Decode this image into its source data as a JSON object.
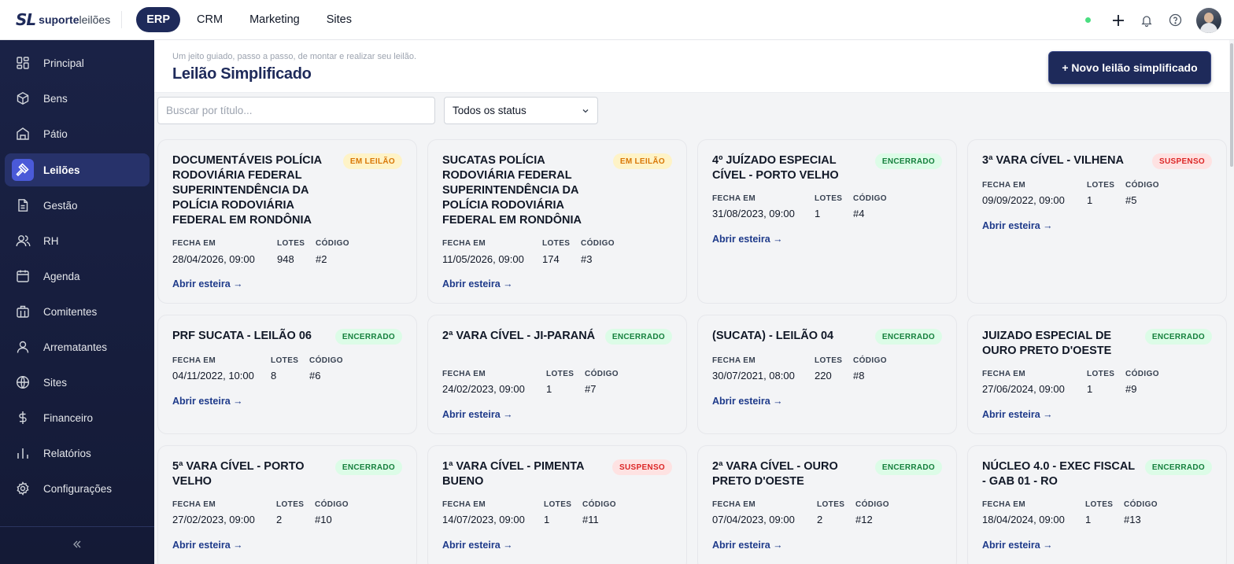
{
  "app": {
    "logo_mark": "SL",
    "logo_brand_bold": "suporte",
    "logo_brand_light": "leilões"
  },
  "topnav": {
    "items": [
      "ERP",
      "CRM",
      "Marketing",
      "Sites"
    ],
    "active": "ERP"
  },
  "sidebar": {
    "items": [
      {
        "label": "Principal",
        "icon": "grid-icon"
      },
      {
        "label": "Bens",
        "icon": "box-icon"
      },
      {
        "label": "Pátio",
        "icon": "building-icon"
      },
      {
        "label": "Leilões",
        "icon": "gavel-icon",
        "active": true
      },
      {
        "label": "Gestão",
        "icon": "document-icon"
      },
      {
        "label": "RH",
        "icon": "users-icon"
      },
      {
        "label": "Agenda",
        "icon": "calendar-icon"
      },
      {
        "label": "Comitentes",
        "icon": "briefcase-icon"
      },
      {
        "label": "Arrematantes",
        "icon": "user-icon"
      },
      {
        "label": "Sites",
        "icon": "globe-icon"
      },
      {
        "label": "Financeiro",
        "icon": "dollar-icon"
      },
      {
        "label": "Relatórios",
        "icon": "bar-chart-icon"
      },
      {
        "label": "Configurações",
        "icon": "gear-icon"
      }
    ],
    "collapse_icon": "double-chevron-left-icon"
  },
  "header": {
    "subtitle": "Um jeito guiado, passo a passo, de montar e realizar seu leilão.",
    "title": "Leilão Simplificado",
    "new_button": "+ Novo leilão simplificado"
  },
  "filters": {
    "search_placeholder": "Buscar por título...",
    "status_selected": "Todos os status"
  },
  "labels": {
    "closes_at": "FECHA EM",
    "lots": "LOTES",
    "code": "CÓDIGO",
    "open_link": "Abrir esteira →"
  },
  "colors": {
    "brand": "#1e2a5a",
    "accent": "#4a5ad8",
    "status_em_leilao": "#d97706",
    "status_encerrado": "#15803d",
    "status_suspenso": "#dc2626"
  },
  "auctions": [
    {
      "title": "DOCUMENTÁVEIS POLÍCIA RODOVIÁRIA FEDERAL SUPERINTENDÊNCIA DA POLÍCIA RODOVIÁRIA FEDERAL EM RONDÔNIA",
      "status": "EM LEILÃO",
      "status_key": "em-leilao",
      "closes_at": "28/04/2026, 09:00",
      "lots": "948",
      "code": "#2"
    },
    {
      "title": "SUCATAS POLÍCIA RODOVIÁRIA FEDERAL SUPERINTENDÊNCIA DA POLÍCIA RODOVIÁRIA FEDERAL EM RONDÔNIA",
      "status": "EM LEILÃO",
      "status_key": "em-leilao",
      "closes_at": "11/05/2026, 09:00",
      "lots": "174",
      "code": "#3"
    },
    {
      "title": "4º JUÍZADO ESPECIAL CÍVEL - PORTO VELHO",
      "status": "ENCERRADO",
      "status_key": "encerrado",
      "closes_at": "31/08/2023, 09:00",
      "lots": "1",
      "code": "#4"
    },
    {
      "title": "3ª VARA CÍVEL - VILHENA",
      "status": "SUSPENSO",
      "status_key": "suspenso",
      "closes_at": "09/09/2022, 09:00",
      "lots": "1",
      "code": "#5"
    },
    {
      "title": "PRF SUCATA - LEILÃO 06",
      "status": "ENCERRADO",
      "status_key": "encerrado",
      "closes_at": "04/11/2022, 10:00",
      "lots": "8",
      "code": "#6"
    },
    {
      "title": "2ª VARA CÍVEL - JI-PARANÁ",
      "status": "ENCERRADO",
      "status_key": "encerrado",
      "closes_at": "24/02/2023, 09:00",
      "lots": "1",
      "code": "#7"
    },
    {
      "title": "(SUCATA) - LEILÃO 04",
      "status": "ENCERRADO",
      "status_key": "encerrado",
      "closes_at": "30/07/2021, 08:00",
      "lots": "220",
      "code": "#8"
    },
    {
      "title": "JUIZADO ESPECIAL DE OURO PRETO D'OESTE",
      "status": "ENCERRADO",
      "status_key": "encerrado",
      "closes_at": "27/06/2024, 09:00",
      "lots": "1",
      "code": "#9"
    },
    {
      "title": "5ª VARA CÍVEL - PORTO VELHO",
      "status": "ENCERRADO",
      "status_key": "encerrado",
      "closes_at": "27/02/2023, 09:00",
      "lots": "2",
      "code": "#10"
    },
    {
      "title": "1ª VARA CÍVEL - PIMENTA BUENO",
      "status": "SUSPENSO",
      "status_key": "suspenso",
      "closes_at": "14/07/2023, 09:00",
      "lots": "1",
      "code": "#11"
    },
    {
      "title": "2ª VARA CÍVEL - OURO PRETO D'OESTE",
      "status": "ENCERRADO",
      "status_key": "encerrado",
      "closes_at": "07/04/2023, 09:00",
      "lots": "2",
      "code": "#12"
    },
    {
      "title": "NÚCLEO 4.0 - EXEC FISCAL - GAB 01 - RO",
      "status": "ENCERRADO",
      "status_key": "encerrado",
      "closes_at": "18/04/2024, 09:00",
      "lots": "1",
      "code": "#13"
    }
  ]
}
